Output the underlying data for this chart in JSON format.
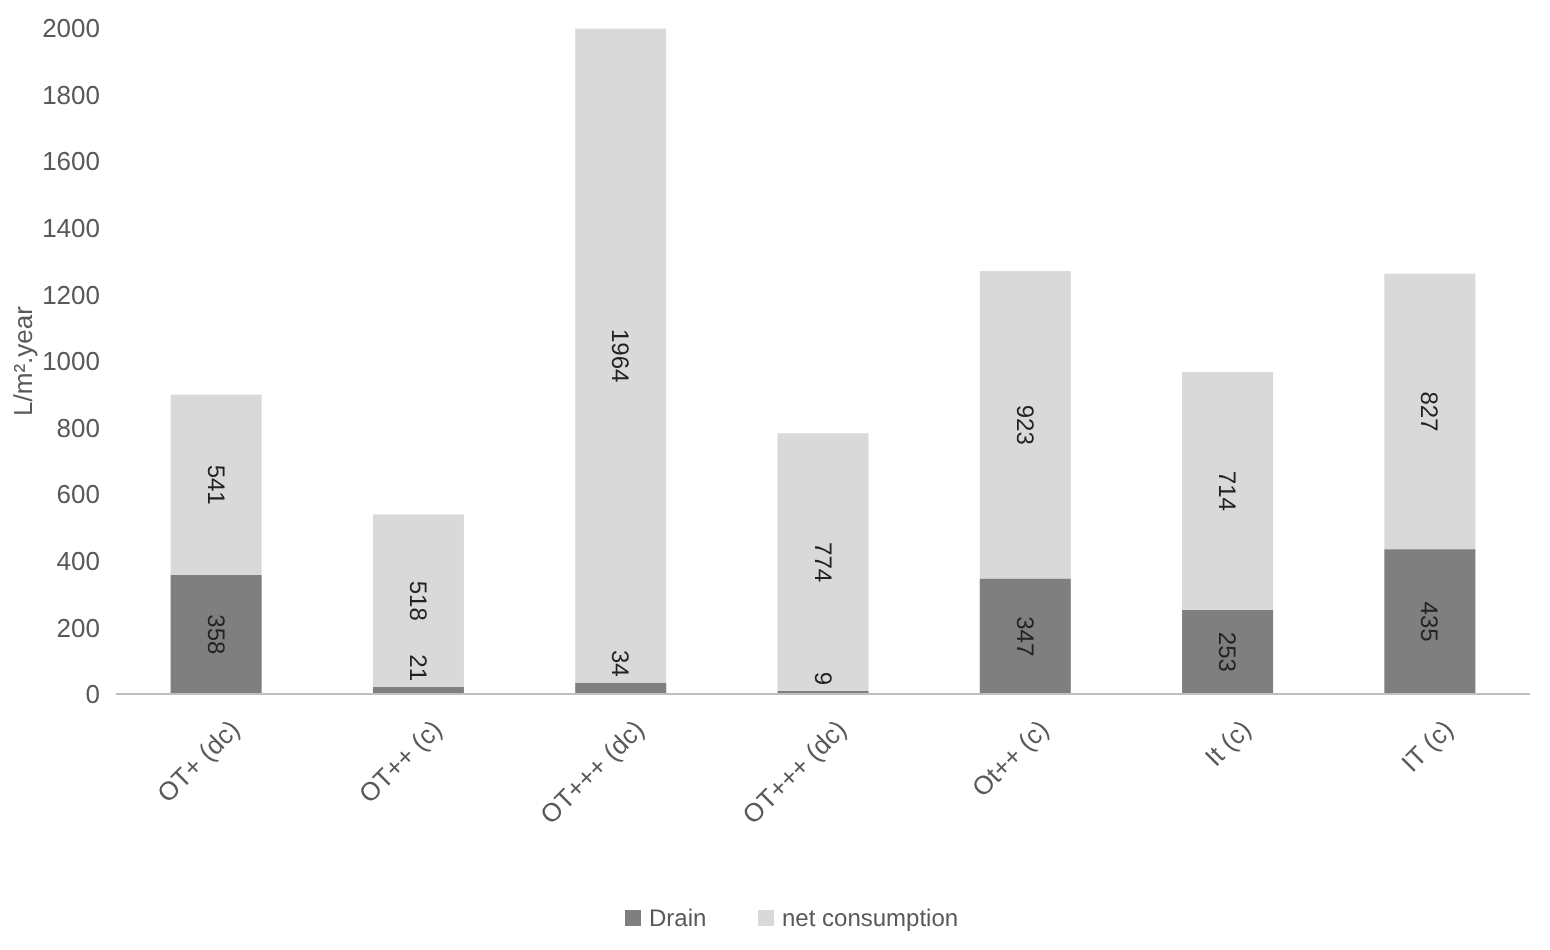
{
  "chart_data": {
    "type": "bar",
    "stacked": true,
    "ylabel": "L/m².year",
    "categories": [
      "OT+ (dc)",
      "OT++ (c)",
      "OT+++ (dc)",
      "OT+++ (dc)",
      "Ot++ (c)",
      "It (c)",
      "IT (c)"
    ],
    "series": [
      {
        "name": "Drain",
        "color": "#7f7f7f",
        "values": [
          358,
          21,
          34,
          9,
          347,
          253,
          435
        ]
      },
      {
        "name": "net consumption",
        "color": "#d9d9d9",
        "values": [
          541,
          518,
          1964,
          774,
          923,
          714,
          827
        ]
      }
    ],
    "ylim": [
      0,
      2000
    ],
    "yticks": [
      0,
      200,
      400,
      600,
      800,
      1000,
      1200,
      1400,
      1600,
      1800,
      2000
    ],
    "data_labels": true,
    "legend": "bottom"
  }
}
